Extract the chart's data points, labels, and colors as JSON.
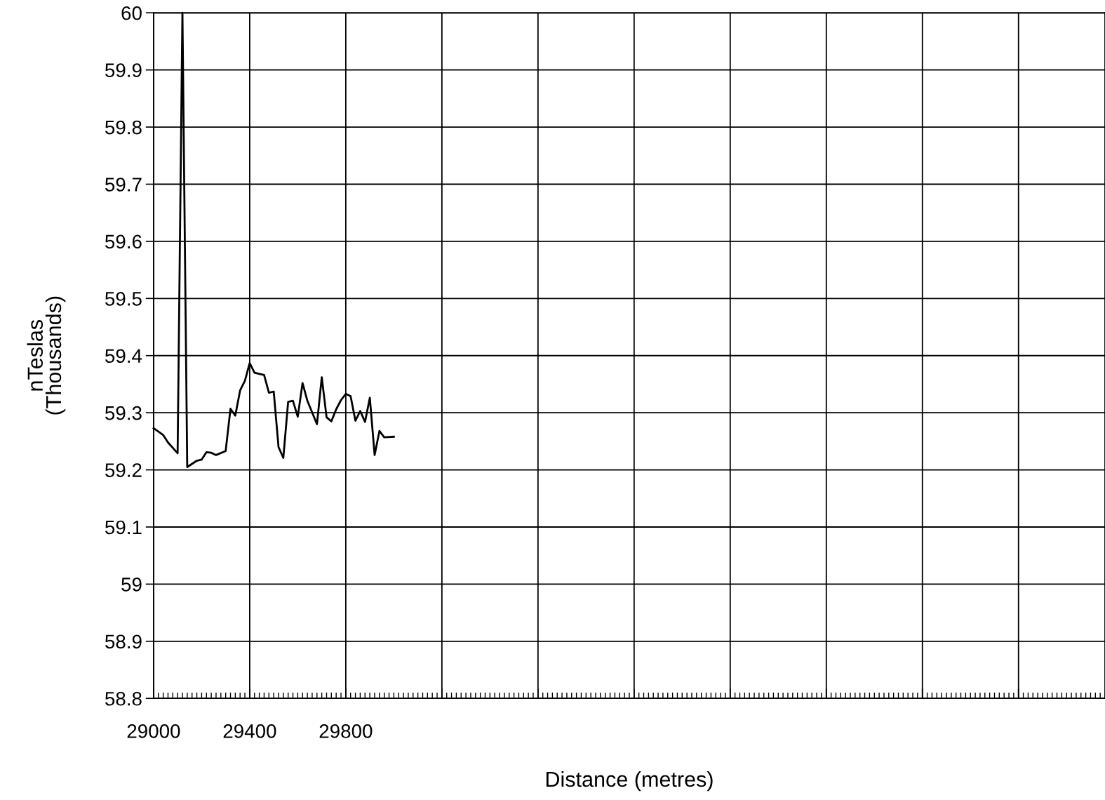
{
  "chart_data": {
    "type": "line",
    "xlabel": "Distance (metres)",
    "ylabel": "nTeslas\n(Thousands)",
    "x": [
      29000,
      29040,
      29060,
      29100,
      29120,
      29140,
      29180,
      29200,
      29220,
      29240,
      29260,
      29300,
      29320,
      29340,
      29360,
      29380,
      29400,
      29420,
      29460,
      29480,
      29500,
      29520,
      29540,
      29560,
      29580,
      29600,
      29620,
      29640,
      29680,
      29700,
      29720,
      29740,
      29760,
      29780,
      29800,
      29820,
      29840,
      29860,
      29880,
      29900,
      29920,
      29940,
      29960,
      30000
    ],
    "series": [
      {
        "color": "#000000",
        "values": [
          59.273,
          59.261,
          59.248,
          59.229,
          60,
          59.205,
          59.216,
          59.218,
          59.231,
          59.23,
          59.226,
          59.233,
          59.307,
          59.295,
          59.339,
          59.356,
          59.387,
          59.37,
          59.366,
          59.335,
          59.337,
          59.24,
          59.221,
          59.319,
          59.321,
          59.293,
          59.352,
          59.321,
          59.28,
          59.362,
          59.292,
          59.285,
          59.306,
          59.322,
          59.333,
          59.329,
          59.286,
          59.303,
          59.284,
          59.326,
          59.226,
          59.268,
          59.257,
          59.258
        ]
      }
    ],
    "xlim": [
      29000,
      32960
    ],
    "xticks": [
      29000,
      29400,
      29800,
      {
        "value": 30200,
        "label": null
      },
      {
        "value": 30600,
        "label": null
      },
      {
        "value": 31000,
        "label": null
      },
      {
        "value": 31400,
        "label": null
      },
      {
        "value": 31800,
        "label": null
      },
      {
        "value": 32200,
        "label": null
      },
      {
        "value": 32600,
        "label": null
      }
    ],
    "ylim": [
      58.8,
      60
    ],
    "yticks": [
      58.8,
      58.9,
      59,
      59.1,
      59.2,
      59.3,
      59.4,
      59.5,
      59.6,
      59.7,
      59.8,
      59.9,
      60
    ],
    "grid": true,
    "marker": "none",
    "line_style": "solid",
    "legend": false
  }
}
